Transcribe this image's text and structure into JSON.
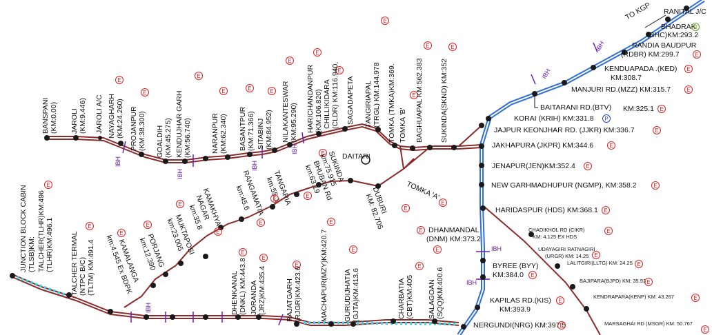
{
  "badges": {
    "E": "E",
    "R": "R",
    "P": "P"
  },
  "ibh": "IBH",
  "direction": "TO KGP",
  "main_line": [
    {
      "label": "RANITAL J/C"
    },
    {
      "label": "BHADRAK",
      "badge": "R"
    },
    {
      "label": "(BHC)KM:293.2"
    },
    {
      "label": "RANDIA BAUDPUR"
    },
    {
      "label": "(RDBR) KM:299.7",
      "badge": "E"
    },
    {
      "label": "KENDUAPADA .(KED)",
      "badge": "E"
    },
    {
      "label": "KM:308.7"
    },
    {
      "label": "MANJURI RD.(MZZ)  KM:315.7",
      "badge": "E"
    },
    {
      "label": "BAITARANI RD.(BTV)"
    },
    {
      "label": "KM:325.1",
      "badge": "E"
    },
    {
      "label": "KORAI (KRIH) KM:331.8",
      "badge": "P"
    },
    {
      "label": "JAJPUR KEONJHAR RD. (JJKR) KM:336.7",
      "badge": "E"
    },
    {
      "label": "JAKHAPURA (JKPR) KM:344.6",
      "badge": "E"
    },
    {
      "label": "JENAPUR(JEN)KM:352.4",
      "badge": "E"
    },
    {
      "label": "NEW GARHMADHUPUR (NGMP), KM:358.2",
      "badge": "E"
    },
    {
      "label": "HARIDASPUR (HDS) KM:368.1",
      "badge": "E"
    },
    {
      "label": "DHANMANDAL"
    },
    {
      "label": "(DNM) KM:373.2",
      "badge": "E"
    },
    {
      "label": "BYREE (BYY)"
    },
    {
      "label": "KM:384.0",
      "badge": "E"
    },
    {
      "label": "KAPILAS RD.(KIS)",
      "badge": "E"
    },
    {
      "label": "KM:393.9"
    },
    {
      "label": "NERGUNDI(NRG) KM:397.5",
      "badge": "E"
    }
  ],
  "paradip_branch": [
    {
      "label": "CHADIKHOL RD (CIKR)"
    },
    {
      "label": "KM: 4.125 EX HDS",
      "badge": "E"
    },
    {
      "label": "UDAYAGIRI RATNAGIRI"
    },
    {
      "label": "(URGR) KM: 14.25",
      "badge": "E"
    },
    {
      "label": "LALITGIRI(LLTG) KM: 24.25",
      "badge": "E"
    },
    {
      "label": "BAJIPARA(BJPD) KM: 35.93",
      "badge": "E"
    },
    {
      "label": "KENDRAPARA(KENP) KM: 43.267",
      "badge": "E"
    },
    {
      "label": "MARSAGHAI RD (MSGR) KM: 50.767",
      "badge": "E"
    }
  ],
  "north_line": [
    {
      "label": "BANSPANI"
    },
    {
      "label": "(KM:0.00)"
    },
    {
      "label": "JAROLI"
    },
    {
      "label": "(KM:9.446)"
    },
    {
      "label": "JAROLI A/C"
    },
    {
      "label": "NAYAGHARH",
      "badge": "E"
    },
    {
      "label": "(KM:24.260)"
    },
    {
      "label": "PROJANPUR",
      "badge": "E"
    },
    {
      "label": "(KM:38.300)"
    },
    {
      "label": "GOALDIH"
    },
    {
      "label": "(KM:45.275)"
    },
    {
      "label": "KENDUJHAR GARH",
      "badge": "E"
    },
    {
      "label": "(KM:56.740)"
    },
    {
      "label": "NARANPUR",
      "badge": "E"
    },
    {
      "label": "(KM:62.340)"
    },
    {
      "label": "BASANTPUR",
      "badge": "E"
    },
    {
      "label": "(KM:71.366)"
    },
    {
      "label": "SITABINJ",
      "badge": "E"
    },
    {
      "label": "(KM:84.952)"
    },
    {
      "label": "NILAKANTESWAR",
      "badge": "E"
    },
    {
      "label": "(KM:95.290)"
    },
    {
      "label": "HARICHANDANPUR",
      "badge": "E"
    },
    {
      "label": "(KM:106.820)"
    },
    {
      "label": "CHILLIKIDARA",
      "badge": "E"
    },
    {
      "label": "(CLDR) KM:116.940,"
    },
    {
      "label": "SAGADAPETA"
    },
    {
      "label": "TANGIRIAPAL",
      "badge": "E"
    },
    {
      "label": "(TRGL) KM:144.978"
    },
    {
      "label": "TOMKA (TMKA)KM:369."
    },
    {
      "label": "TOMKA 'B'",
      "badge": "E"
    },
    {
      "label": "BAGHUAPAL KM:562.383",
      "badge": "E"
    },
    {
      "label": "SUKINDA(SKND) KM:352",
      "badge": "E"
    },
    {
      "label": "DAITARI"
    }
  ],
  "middle_line": [
    {
      "label": "SUKINDA",
      "badge": "E"
    },
    {
      "label": "km:75.915"
    },
    {
      "label": "BHUBAN Rd",
      "badge": "E"
    },
    {
      "label": "km:63.19"
    },
    {
      "label": "TANGARIA"
    },
    {
      "label": "km:55.1",
      "badge": "E"
    },
    {
      "label": "RANGAMATIA"
    },
    {
      "label": "km:45.6",
      "badge": "E"
    },
    {
      "label": "KAMAKHYA"
    },
    {
      "label": "NAGAR"
    },
    {
      "label": "km:35.8",
      "badge": "E"
    },
    {
      "label": "MUKTAPOSI",
      "badge": "E"
    },
    {
      "label": "km:23.005"
    },
    {
      "label": "PORJANG",
      "badge": "E"
    },
    {
      "label": "km:12.390"
    },
    {
      "label": "KAMALANGA",
      "badge": "E"
    },
    {
      "label": "km:4.545 Ex BDPK"
    },
    {
      "label": "DUBURI",
      "badge": "E"
    },
    {
      "label": "KM: 82.705"
    },
    {
      "label": "TOMKA 'A'",
      "badge": "E"
    }
  ],
  "south_line": [
    {
      "label": "JUNCTION BLOCK CABIN"
    },
    {
      "label": "(TLSB)KM:"
    },
    {
      "label": "TALCHER(TLHR)KM:496",
      "badge": "E"
    },
    {
      "label": "(TLHR)KM:496.1"
    },
    {
      "label": "TALCHER TERMAL"
    },
    {
      "label": "(NTPC B/C)"
    },
    {
      "label": "(TLTM) KM:491.4",
      "badge": "E"
    },
    {
      "label": "DHENKANAL",
      "badge": "E"
    },
    {
      "label": "(DNKL) KM:443.8"
    },
    {
      "label": "JORANDA",
      "badge": "E"
    },
    {
      "label": "(JRZ)KM:435.4"
    },
    {
      "label": "RAJATGARH",
      "badge": "E"
    },
    {
      "label": "(RJGR)KM:423.6"
    },
    {
      "label": "MACHAPUR(MZY)KM:420.7",
      "badge": "E"
    },
    {
      "label": "GURUDIJHATIA",
      "badge": "E"
    },
    {
      "label": "(GJTA)KM:413.6"
    },
    {
      "label": "CHARBATIA",
      "badge": "E"
    },
    {
      "label": "(CBT)KM:405"
    },
    {
      "label": "SALAGOAN",
      "badge": "E"
    },
    {
      "label": "(SQQ)KM:400.6"
    }
  ],
  "colors": {
    "track": "#8b2a2a",
    "main": "#2f6fd6",
    "station": "#1a1a1a",
    "badge": "#e02020",
    "ibh": "#6a1bb8",
    "cyan": "#35d6e6"
  }
}
